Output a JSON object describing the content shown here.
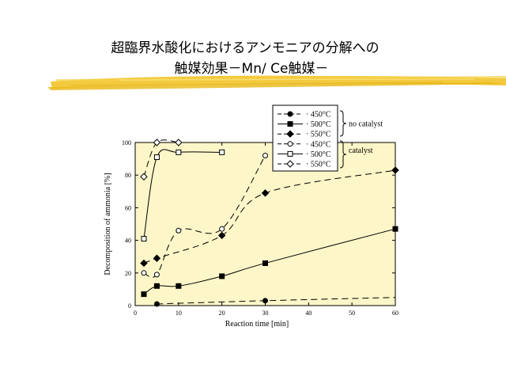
{
  "slide": {
    "title_line_1": "超臨界水酸化におけるアンモニアの分解への",
    "title_line_2": "触媒効果－Mn/ Ce触媒－",
    "brush_color": "#f0c020"
  },
  "chart_data": {
    "type": "scatter",
    "xlabel": "Reaction time [min]",
    "ylabel": "Decomposition of ammonia [%]",
    "xlim": [
      0,
      60
    ],
    "ylim": [
      0,
      100
    ],
    "xticks": [
      0,
      10,
      20,
      30,
      40,
      50,
      60
    ],
    "yticks": [
      0,
      20,
      40,
      60,
      80,
      100
    ],
    "plot_background": "#fdf6c8",
    "legend_placement": "top-right, above plot",
    "legend_groups": [
      "no catalyst",
      "catalyst"
    ],
    "series": [
      {
        "name": "450°C",
        "group": "no catalyst",
        "marker": "circle-filled",
        "line": "dashed",
        "x": [
          5,
          30
        ],
        "y": [
          1,
          3
        ]
      },
      {
        "name": "500°C",
        "group": "no catalyst",
        "marker": "square-filled",
        "line": "solid",
        "x": [
          2,
          5,
          10,
          20,
          30,
          60
        ],
        "y": [
          7,
          12,
          12,
          18,
          26,
          47
        ]
      },
      {
        "name": "550°C",
        "group": "no catalyst",
        "marker": "diamond-filled",
        "line": "dashed",
        "x": [
          2,
          5,
          20,
          30,
          60
        ],
        "y": [
          26,
          29,
          43,
          69,
          83
        ]
      },
      {
        "name": "450°C",
        "group": "catalyst",
        "marker": "circle-open",
        "line": "dashed",
        "x": [
          2,
          5,
          10,
          20,
          30
        ],
        "y": [
          20,
          19,
          46,
          47,
          92
        ]
      },
      {
        "name": "500°C",
        "group": "catalyst",
        "marker": "square-open",
        "line": "solid",
        "x": [
          2,
          5,
          10,
          20
        ],
        "y": [
          41,
          91,
          94,
          94
        ]
      },
      {
        "name": "550°C",
        "group": "catalyst",
        "marker": "diamond-open",
        "line": "dashed",
        "x": [
          2,
          5,
          10
        ],
        "y": [
          79,
          100,
          100
        ]
      }
    ]
  }
}
